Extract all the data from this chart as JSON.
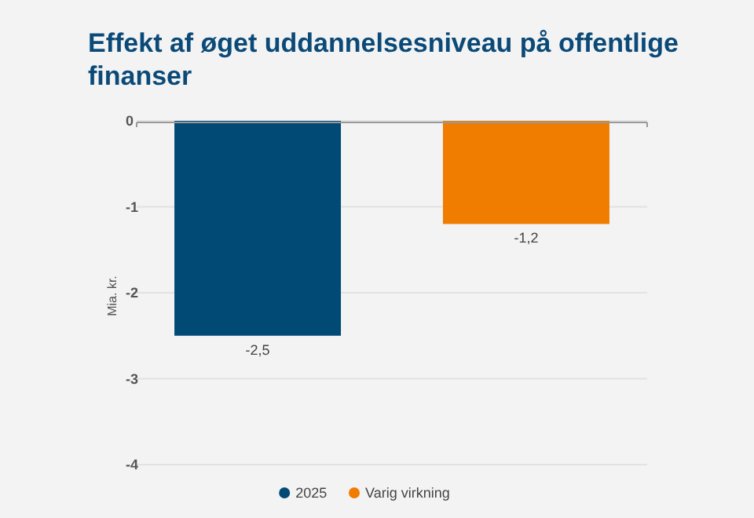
{
  "chart_data": {
    "type": "bar",
    "title": "Effekt af øget uddannelsesniveau på offentlige finanser",
    "ylabel": "Mia. kr.",
    "categories": [
      null
    ],
    "series": [
      {
        "name": "2025",
        "color": "#004a75",
        "values": [
          -2.5
        ],
        "value_labels": [
          "-2,5"
        ]
      },
      {
        "name": "Varig virkning",
        "color": "#f07c00",
        "values": [
          -1.2
        ],
        "value_labels": [
          "-1,2"
        ]
      }
    ],
    "ylim": [
      -4,
      0
    ],
    "yticks": [
      0,
      -1,
      -2,
      -3,
      -4
    ],
    "grid": "y",
    "legend": "bottom"
  }
}
